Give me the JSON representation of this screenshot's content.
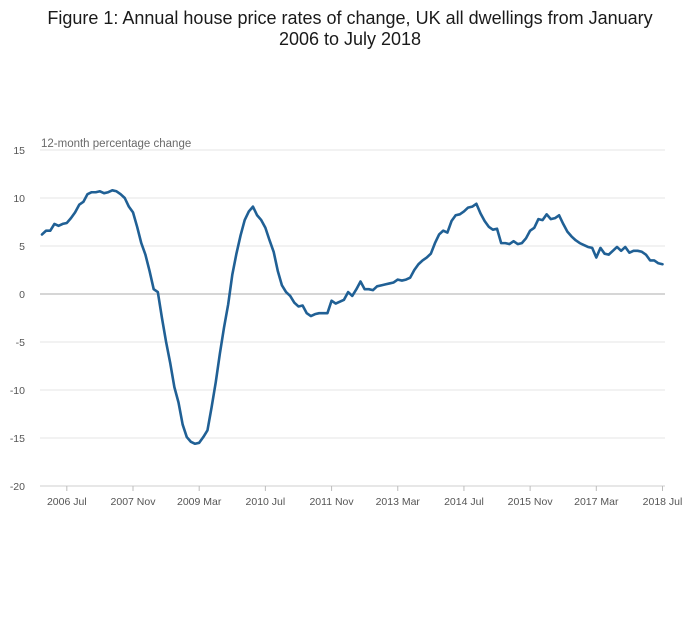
{
  "chart_data": {
    "type": "line",
    "title_line1": "Figure 1: Annual house price rates of change, UK all dwellings from January",
    "title_line2": "2006 to July 2018",
    "ylabel": "12-month percentage change",
    "xlabel": "",
    "ylim": [
      -20,
      15
    ],
    "yticks": [
      "15",
      "10",
      "5",
      "0",
      "-5",
      "-10",
      "-15",
      "-20"
    ],
    "ytick_values": [
      15,
      10,
      5,
      0,
      -5,
      -10,
      -15,
      -20
    ],
    "xticks": [
      "2006 Jul",
      "2007 Nov",
      "2009 Mar",
      "2010 Jul",
      "2011 Nov",
      "2013 Mar",
      "2014 Jul",
      "2015 Nov",
      "2017 Mar",
      "2018 Jul"
    ],
    "xtick_months": [
      6,
      22,
      38,
      54,
      70,
      86,
      102,
      118,
      134,
      150
    ],
    "grid": true,
    "line_color": "#206095",
    "series": [
      {
        "name": "UK all dwellings",
        "start": "2006 Jan",
        "values": [
          6.2,
          6.6,
          6.6,
          7.3,
          7.1,
          7.3,
          7.4,
          7.9,
          8.5,
          9.3,
          9.6,
          10.4,
          10.6,
          10.6,
          10.7,
          10.5,
          10.6,
          10.8,
          10.7,
          10.4,
          10.0,
          9.1,
          8.5,
          7.0,
          5.3,
          4.1,
          2.4,
          0.5,
          0.2,
          -2.5,
          -5.0,
          -7.2,
          -9.7,
          -11.3,
          -13.6,
          -14.9,
          -15.4,
          -15.6,
          -15.5,
          -14.9,
          -14.2,
          -11.8,
          -9.2,
          -6.2,
          -3.5,
          -1.1,
          2.0,
          4.2,
          6.1,
          7.7,
          8.6,
          9.1,
          8.2,
          7.7,
          6.9,
          5.6,
          4.4,
          2.4,
          0.9,
          0.2,
          -0.2,
          -0.9,
          -1.3,
          -1.2,
          -2.0,
          -2.3,
          -2.1,
          -2.0,
          -2.0,
          -2.0,
          -0.7,
          -1.0,
          -0.8,
          -0.6,
          0.2,
          -0.2,
          0.5,
          1.3,
          0.5,
          0.5,
          0.4,
          0.8,
          0.9,
          1.0,
          1.1,
          1.2,
          1.5,
          1.4,
          1.5,
          1.7,
          2.5,
          3.1,
          3.5,
          3.8,
          4.2,
          5.3,
          6.2,
          6.6,
          6.4,
          7.6,
          8.2,
          8.3,
          8.6,
          9.0,
          9.1,
          9.4,
          8.4,
          7.6,
          7.0,
          6.7,
          6.8,
          5.3,
          5.3,
          5.2,
          5.5,
          5.2,
          5.3,
          5.8,
          6.6,
          6.9,
          7.8,
          7.7,
          8.3,
          7.8,
          7.9,
          8.2,
          7.3,
          6.5,
          6.0,
          5.6,
          5.3,
          5.1,
          4.9,
          4.8,
          3.8,
          4.8,
          4.2,
          4.1,
          4.5,
          4.9,
          4.5,
          4.9,
          4.3,
          4.5,
          4.5,
          4.4,
          4.1,
          3.5,
          3.5,
          3.2,
          3.1
        ]
      }
    ]
  }
}
